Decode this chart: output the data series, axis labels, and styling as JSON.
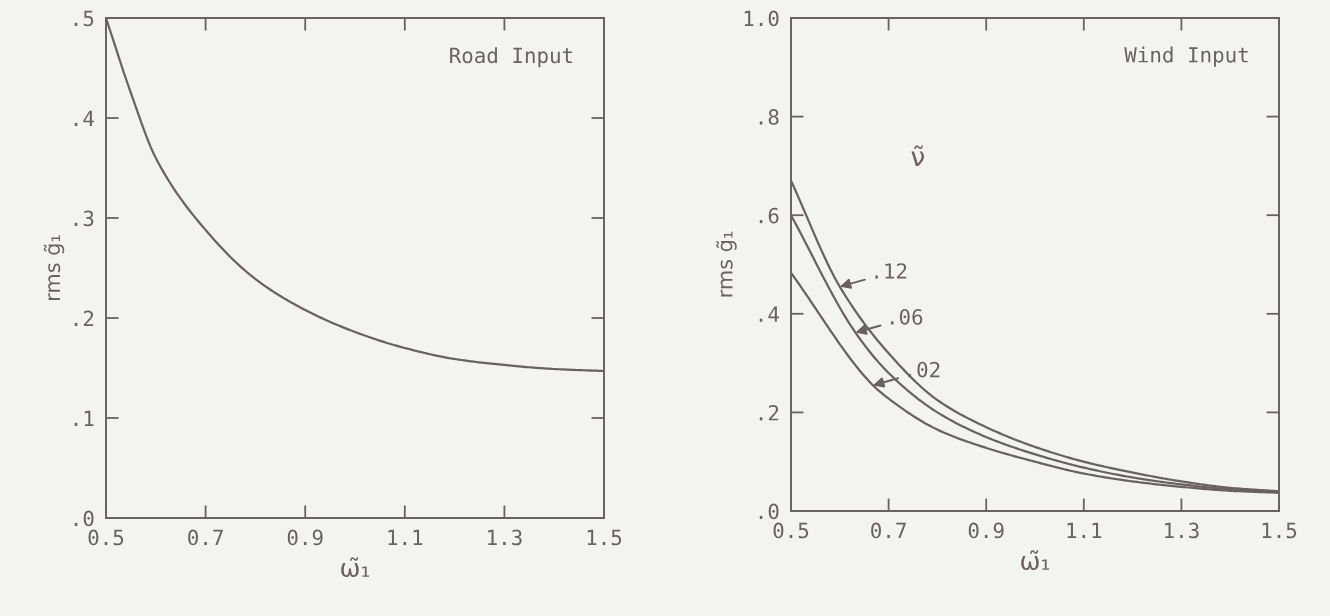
{
  "chart_data": [
    {
      "type": "line",
      "title": "Road Input",
      "xlabel": "ω̃₁",
      "ylabel": "rms g̃₁",
      "x": [
        0.5,
        0.55,
        0.6,
        0.7,
        0.8,
        0.9,
        1.0,
        1.1,
        1.2,
        1.3,
        1.4,
        1.5
      ],
      "series": [
        {
          "color": "#6a6260",
          "values": [
            0.5,
            0.425,
            0.36,
            0.288,
            0.239,
            0.208,
            0.186,
            0.17,
            0.159,
            0.153,
            0.149,
            0.147
          ]
        }
      ],
      "xlim": [
        0.5,
        1.5
      ],
      "xticks": [
        0.5,
        0.7,
        0.9,
        1.1,
        1.3,
        1.5
      ],
      "ylim": [
        0,
        0.5
      ],
      "yticks": [
        {
          "value": 0,
          "label": ".0"
        },
        {
          "value": 0.1,
          "label": ".1"
        },
        {
          "value": 0.2,
          "label": ".2"
        },
        {
          "value": 0.3,
          "label": ".3"
        },
        {
          "value": 0.4,
          "label": ".4"
        },
        {
          "value": 0.5,
          "label": ".5"
        }
      ],
      "grid": false,
      "marker": "none",
      "line_style": "solid"
    },
    {
      "type": "line",
      "title": "Wind Input",
      "xlabel": "ω̃₁",
      "ylabel": "rms g̃₁",
      "legend_title": "ν̃",
      "series": [
        {
          "name": ".12",
          "color": "#6a6260",
          "x": [
            0.5,
            0.6,
            0.7,
            0.8,
            0.9,
            1.0,
            1.1,
            1.2,
            1.3,
            1.4,
            1.5
          ],
          "values": [
            0.67,
            0.455,
            0.32,
            0.225,
            0.17,
            0.13,
            0.1,
            0.078,
            0.06,
            0.047,
            0.04
          ]
        },
        {
          "name": ".06",
          "color": "#6a6260",
          "x": [
            0.5,
            0.632,
            0.7,
            0.8,
            0.9,
            1.0,
            1.1,
            1.2,
            1.3,
            1.4,
            1.5
          ],
          "values": [
            0.6,
            0.362,
            0.28,
            0.2,
            0.15,
            0.115,
            0.088,
            0.068,
            0.054,
            0.044,
            0.038
          ]
        },
        {
          "name": ".02",
          "color": "#6a6260",
          "x": [
            0.5,
            0.668,
            0.7,
            0.8,
            0.9,
            1.0,
            1.1,
            1.2,
            1.3,
            1.4,
            1.5
          ],
          "values": [
            0.483,
            0.255,
            0.228,
            0.165,
            0.128,
            0.1,
            0.076,
            0.06,
            0.049,
            0.041,
            0.037
          ]
        }
      ],
      "legend": "left",
      "xlim": [
        0.5,
        1.5
      ],
      "xticks": [
        0.5,
        0.7,
        0.9,
        1.1,
        1.3,
        1.5
      ],
      "ylim": [
        0,
        1.0
      ],
      "yticks": [
        {
          "value": 0,
          "label": ".0"
        },
        {
          "value": 0.2,
          "label": ".2"
        },
        {
          "value": 0.4,
          "label": ".4"
        },
        {
          "value": 0.6,
          "label": ".6"
        },
        {
          "value": 0.8,
          "label": ".8"
        },
        {
          "value": 1.0,
          "label": "1.0"
        }
      ],
      "grid": false,
      "marker": "none",
      "line_style": "solid"
    }
  ]
}
